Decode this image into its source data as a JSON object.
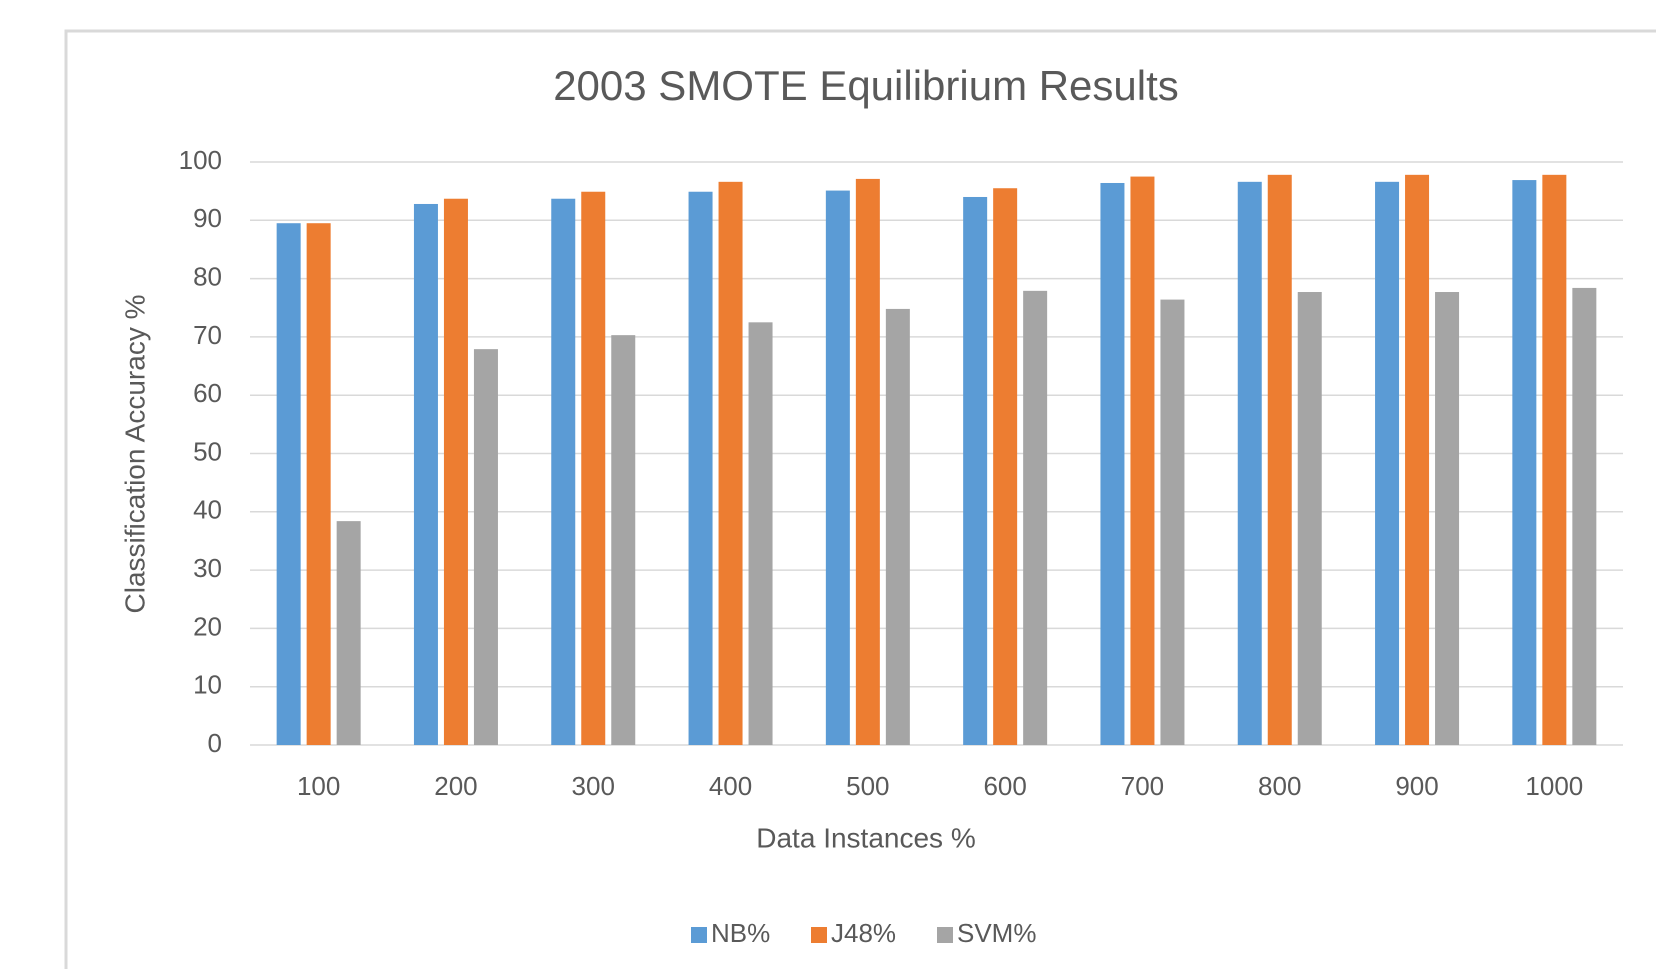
{
  "chart_data": {
    "type": "bar",
    "title": "2003 SMOTE Equilibrium Results",
    "x_label": "Data Instances %",
    "y_label": "Classification Accuracy %",
    "categories": [
      "100",
      "200",
      "300",
      "400",
      "500",
      "600",
      "700",
      "800",
      "900",
      "1000"
    ],
    "series": [
      {
        "name": "NB%",
        "color": "#5b9bd5",
        "values": [
          89.5,
          92.8,
          93.7,
          94.9,
          95.1,
          94.0,
          96.4,
          96.6,
          96.6,
          96.9
        ]
      },
      {
        "name": "J48%",
        "color": "#ed7d31",
        "values": [
          89.5,
          93.7,
          94.9,
          96.6,
          97.1,
          95.5,
          97.5,
          97.8,
          97.8,
          97.8
        ]
      },
      {
        "name": "SVM%",
        "color": "#a5a5a5",
        "values": [
          38.4,
          67.9,
          70.3,
          72.5,
          74.8,
          77.9,
          76.4,
          77.7,
          77.7,
          78.4
        ]
      }
    ],
    "ylim": [
      0,
      100
    ],
    "yticks": [
      0,
      10,
      20,
      30,
      40,
      50,
      60,
      70,
      80,
      90,
      100
    ],
    "grid": true,
    "legend": "bottom"
  }
}
